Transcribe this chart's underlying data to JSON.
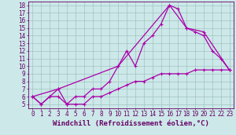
{
  "xlabel": "Windchill (Refroidissement éolien,°C)",
  "background_color": "#cce8e8",
  "line_color": "#aa00aa",
  "grid_color": "#99bbbb",
  "xlim": [
    -0.5,
    23.5
  ],
  "ylim": [
    4.5,
    18.5
  ],
  "xticks": [
    0,
    1,
    2,
    3,
    4,
    5,
    6,
    7,
    8,
    9,
    10,
    11,
    12,
    13,
    14,
    15,
    16,
    17,
    18,
    19,
    20,
    21,
    22,
    23
  ],
  "yticks": [
    5,
    6,
    7,
    8,
    9,
    10,
    11,
    12,
    13,
    14,
    15,
    16,
    17,
    18
  ],
  "line1_x": [
    0,
    1,
    2,
    3,
    4,
    5,
    6,
    7,
    8,
    9,
    10,
    11,
    12,
    13,
    14,
    15,
    16,
    17,
    18,
    19,
    20,
    21,
    22,
    23
  ],
  "line1_y": [
    6,
    5,
    6,
    6,
    5,
    5,
    5,
    6,
    6,
    6.5,
    7,
    7.5,
    8,
    8,
    8.5,
    9,
    9,
    9,
    9,
    9.5,
    9.5,
    9.5,
    9.5,
    9.5
  ],
  "line2_x": [
    0,
    1,
    2,
    3,
    4,
    5,
    6,
    7,
    8,
    9,
    10,
    11,
    12,
    13,
    14,
    15,
    16,
    17,
    18,
    19,
    20,
    21,
    22,
    23
  ],
  "line2_y": [
    6,
    5,
    6,
    7,
    5,
    6,
    6,
    7,
    7,
    8,
    10,
    12,
    10,
    13,
    14,
    15.5,
    18,
    17.5,
    15,
    14.5,
    14,
    12,
    11,
    9.5
  ],
  "line3_x": [
    0,
    3,
    10,
    16,
    18,
    20,
    23
  ],
  "line3_y": [
    6,
    7,
    10,
    18,
    15,
    14.5,
    9.5
  ],
  "marker": "+",
  "markersize": 3,
  "linewidth": 0.9,
  "tick_fontsize": 5.5,
  "xlabel_fontsize": 6.5
}
